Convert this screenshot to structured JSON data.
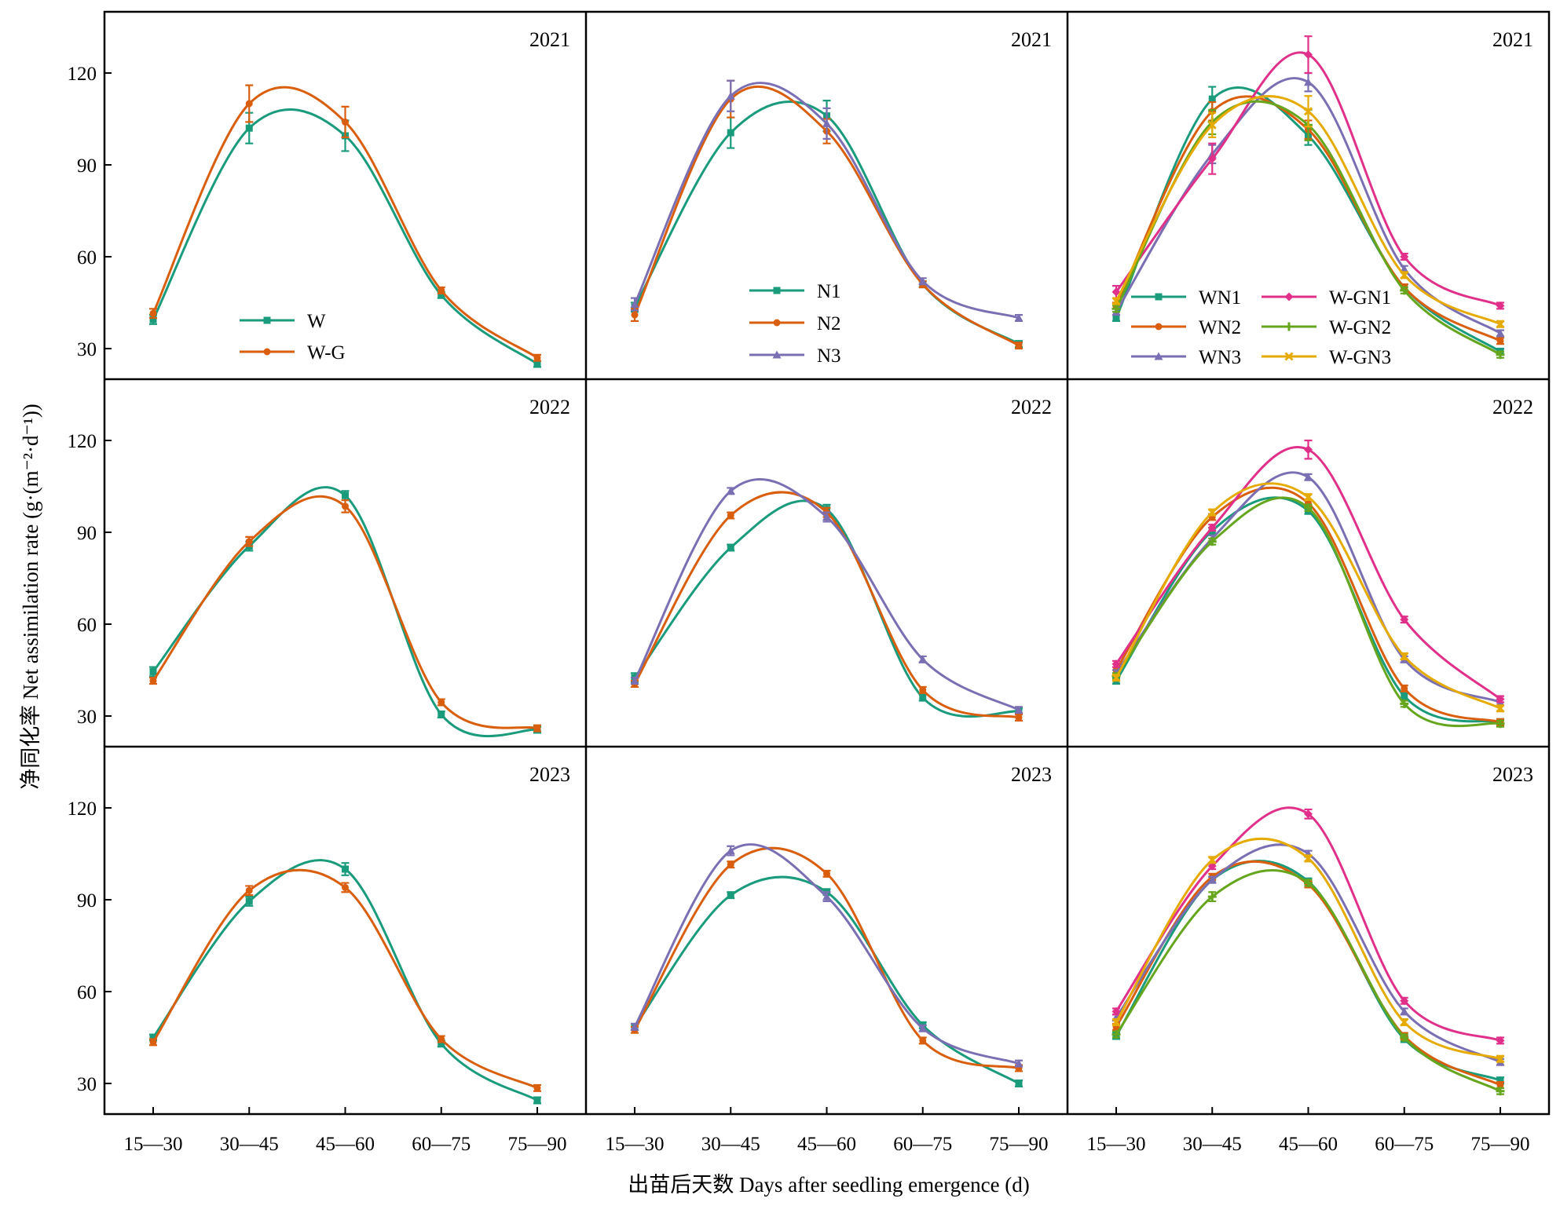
{
  "chart_data": {
    "type": "line",
    "xlabel": "出苗后天数 Days after seedling emergence (d)",
    "ylabel": "净同化率 Net assimilation rate (g·(m⁻²·d⁻¹))",
    "categories": [
      "15—30",
      "30—45",
      "45—60",
      "60—75",
      "75—90"
    ],
    "yticks": [
      "30",
      "60",
      "90",
      "120"
    ],
    "ylim": [
      20,
      140
    ],
    "grid": false,
    "panels": [
      {
        "year": "2021",
        "legend_position": "bottom-left",
        "series": [
          {
            "name": "W",
            "color": "#1a9b7c",
            "marker": "square",
            "values": [
              39.5,
              102,
              99.5,
              47.5,
              25
            ],
            "errors": [
              1.5,
              5,
              5,
              1,
              1
            ]
          },
          {
            "name": "W-G",
            "color": "#d95f0e",
            "marker": "circle",
            "values": [
              41.5,
              110,
              104,
              49,
              27
            ],
            "errors": [
              1.5,
              6,
              5,
              1,
              1
            ]
          }
        ]
      },
      {
        "year": "2021",
        "legend_position": "bottom-center",
        "series": [
          {
            "name": "N1",
            "color": "#1a9b7c",
            "marker": "square",
            "values": [
              43.5,
              100.5,
              106,
              51,
              31.5
            ],
            "errors": [
              1.5,
              5,
              5,
              1,
              1
            ]
          },
          {
            "name": "N2",
            "color": "#d95f0e",
            "marker": "circle",
            "values": [
              41,
              111.5,
              101,
              51,
              31
            ],
            "errors": [
              2,
              6,
              4,
              1,
              1
            ]
          },
          {
            "name": "N3",
            "color": "#7b6fb3",
            "marker": "triangle",
            "values": [
              44.5,
              112.5,
              103.5,
              52,
              40
            ],
            "errors": [
              2,
              5,
              5,
              1,
              1
            ]
          }
        ]
      },
      {
        "year": "2021",
        "legend_position": "bottom",
        "series": [
          {
            "name": "WN1",
            "color": "#1a9b7c",
            "marker": "square",
            "values": [
              40,
              111.5,
              99.5,
              50,
              29
            ],
            "errors": [
              1,
              4,
              3,
              1,
              1
            ]
          },
          {
            "name": "WN2",
            "color": "#d95f0e",
            "marker": "circle",
            "values": [
              44,
              107.5,
              101.5,
              50,
              32.5
            ],
            "errors": [
              1,
              3,
              3,
              1,
              1
            ]
          },
          {
            "name": "WN3",
            "color": "#7b6fb3",
            "marker": "triangle",
            "values": [
              42,
              93.5,
              117,
              56,
              35
            ],
            "errors": [
              1,
              3,
              3,
              1,
              1
            ]
          },
          {
            "name": "W-GN1",
            "color": "#e0308a",
            "marker": "diamond",
            "values": [
              48.5,
              92,
              126,
              60,
              44
            ],
            "errors": [
              2,
              5,
              6,
              1,
              1
            ]
          },
          {
            "name": "W-GN2",
            "color": "#66a61e",
            "marker": "plus",
            "values": [
              43,
              104,
              103,
              49,
              28
            ],
            "errors": [
              1,
              4,
              5,
              1,
              1
            ]
          },
          {
            "name": "W-GN3",
            "color": "#e6ab02",
            "marker": "cross",
            "values": [
              45.5,
              103,
              107.5,
              54,
              38
            ],
            "errors": [
              1,
              4,
              5,
              1,
              1
            ]
          }
        ]
      },
      {
        "year": "2022",
        "series": [
          {
            "name": "W",
            "color": "#1a9b7c",
            "marker": "square",
            "values": [
              44.5,
              85.5,
              102,
              30.5,
              25.5
            ],
            "errors": [
              1.5,
              1.5,
              1.5,
              1,
              1
            ]
          },
          {
            "name": "W-G",
            "color": "#d95f0e",
            "marker": "circle",
            "values": [
              41.5,
              87,
              98.5,
              34.5,
              26
            ],
            "errors": [
              1,
              1.5,
              2,
              1,
              1
            ]
          }
        ]
      },
      {
        "year": "2022",
        "series": [
          {
            "name": "N1",
            "color": "#1a9b7c",
            "marker": "square",
            "values": [
              42.5,
              85,
              97.5,
              36,
              31.5
            ],
            "errors": [
              1.5,
              1,
              1.5,
              1,
              1
            ]
          },
          {
            "name": "N2",
            "color": "#d95f0e",
            "marker": "circle",
            "values": [
              40.5,
              95.5,
              96.5,
              38.5,
              29.5
            ],
            "errors": [
              1,
              1,
              1.5,
              1,
              1
            ]
          },
          {
            "name": "N3",
            "color": "#7b6fb3",
            "marker": "triangle",
            "values": [
              41.5,
              103.5,
              95,
              48.5,
              32
            ],
            "errors": [
              1,
              1,
              1.5,
              1,
              1
            ]
          }
        ]
      },
      {
        "year": "2022",
        "series": [
          {
            "name": "WN1",
            "color": "#1a9b7c",
            "marker": "square",
            "values": [
              41.5,
              90.5,
              97,
              36.5,
              28
            ],
            "errors": [
              1,
              1,
              1,
              1,
              1
            ]
          },
          {
            "name": "WN2",
            "color": "#d95f0e",
            "marker": "circle",
            "values": [
              45,
              95,
              99.5,
              39,
              28
            ],
            "errors": [
              1,
              1,
              1,
              1,
              1
            ]
          },
          {
            "name": "WN3",
            "color": "#7b6fb3",
            "marker": "triangle",
            "values": [
              44,
              88,
              108,
              48.5,
              34.5
            ],
            "errors": [
              1,
              1,
              1,
              1,
              1
            ]
          },
          {
            "name": "W-GN1",
            "color": "#e0308a",
            "marker": "diamond",
            "values": [
              47,
              91.5,
              117,
              61.5,
              35.5
            ],
            "errors": [
              1,
              1,
              3,
              1,
              1
            ]
          },
          {
            "name": "W-GN2",
            "color": "#66a61e",
            "marker": "plus",
            "values": [
              43,
              87,
              98,
              34,
              27.5
            ],
            "errors": [
              1,
              1,
              1,
              1,
              1
            ]
          },
          {
            "name": "W-GN3",
            "color": "#e6ab02",
            "marker": "cross",
            "values": [
              42.5,
              96.5,
              101.5,
              49.5,
              32.5
            ],
            "errors": [
              1,
              1,
              1,
              1,
              1
            ]
          }
        ]
      },
      {
        "year": "2023",
        "series": [
          {
            "name": "W",
            "color": "#1a9b7c",
            "marker": "square",
            "values": [
              45,
              89.5,
              100,
              43,
              24.5
            ],
            "errors": [
              1,
              1.5,
              2,
              1,
              1
            ]
          },
          {
            "name": "W-G",
            "color": "#d95f0e",
            "marker": "circle",
            "values": [
              43.5,
              93,
              94,
              44.5,
              28.5
            ],
            "errors": [
              1,
              1.5,
              1.5,
              1,
              1
            ]
          }
        ]
      },
      {
        "year": "2023",
        "series": [
          {
            "name": "N1",
            "color": "#1a9b7c",
            "marker": "square",
            "values": [
              48.5,
              91.5,
              92.5,
              49,
              30
            ],
            "errors": [
              1,
              1,
              1,
              1,
              1
            ]
          },
          {
            "name": "N2",
            "color": "#d95f0e",
            "marker": "circle",
            "values": [
              47.5,
              101.5,
              98.5,
              44,
              35
            ],
            "errors": [
              1,
              1,
              1,
              1,
              1
            ]
          },
          {
            "name": "N3",
            "color": "#7b6fb3",
            "marker": "triangle",
            "values": [
              48.5,
              106,
              91,
              48,
              36.5
            ],
            "errors": [
              1,
              1.5,
              1.5,
              1,
              1
            ]
          }
        ]
      },
      {
        "year": "2023",
        "series": [
          {
            "name": "WN1",
            "color": "#1a9b7c",
            "marker": "square",
            "values": [
              45.5,
              96.5,
              96,
              44.5,
              31
            ],
            "errors": [
              1,
              1,
              1,
              1,
              1
            ]
          },
          {
            "name": "WN2",
            "color": "#d95f0e",
            "marker": "circle",
            "values": [
              48.5,
              97.5,
              95,
              45.5,
              29.5
            ],
            "errors": [
              1,
              1,
              1,
              1,
              1
            ]
          },
          {
            "name": "WN3",
            "color": "#7b6fb3",
            "marker": "triangle",
            "values": [
              51.5,
              96.5,
              105,
              53.5,
              37
            ],
            "errors": [
              1,
              1,
              1,
              1,
              1
            ]
          },
          {
            "name": "W-GN1",
            "color": "#e0308a",
            "marker": "diamond",
            "values": [
              53.5,
              101,
              118,
              57,
              44
            ],
            "errors": [
              1,
              1,
              1.5,
              1,
              1
            ]
          },
          {
            "name": "W-GN2",
            "color": "#66a61e",
            "marker": "plus",
            "values": [
              46,
              91,
              95.5,
              45,
              27.5
            ],
            "errors": [
              1,
              1.5,
              1,
              1,
              1
            ]
          },
          {
            "name": "W-GN3",
            "color": "#e6ab02",
            "marker": "cross",
            "values": [
              50,
              103,
              103.5,
              50,
              38
            ],
            "errors": [
              1,
              1,
              1,
              1,
              1
            ]
          }
        ]
      }
    ]
  }
}
